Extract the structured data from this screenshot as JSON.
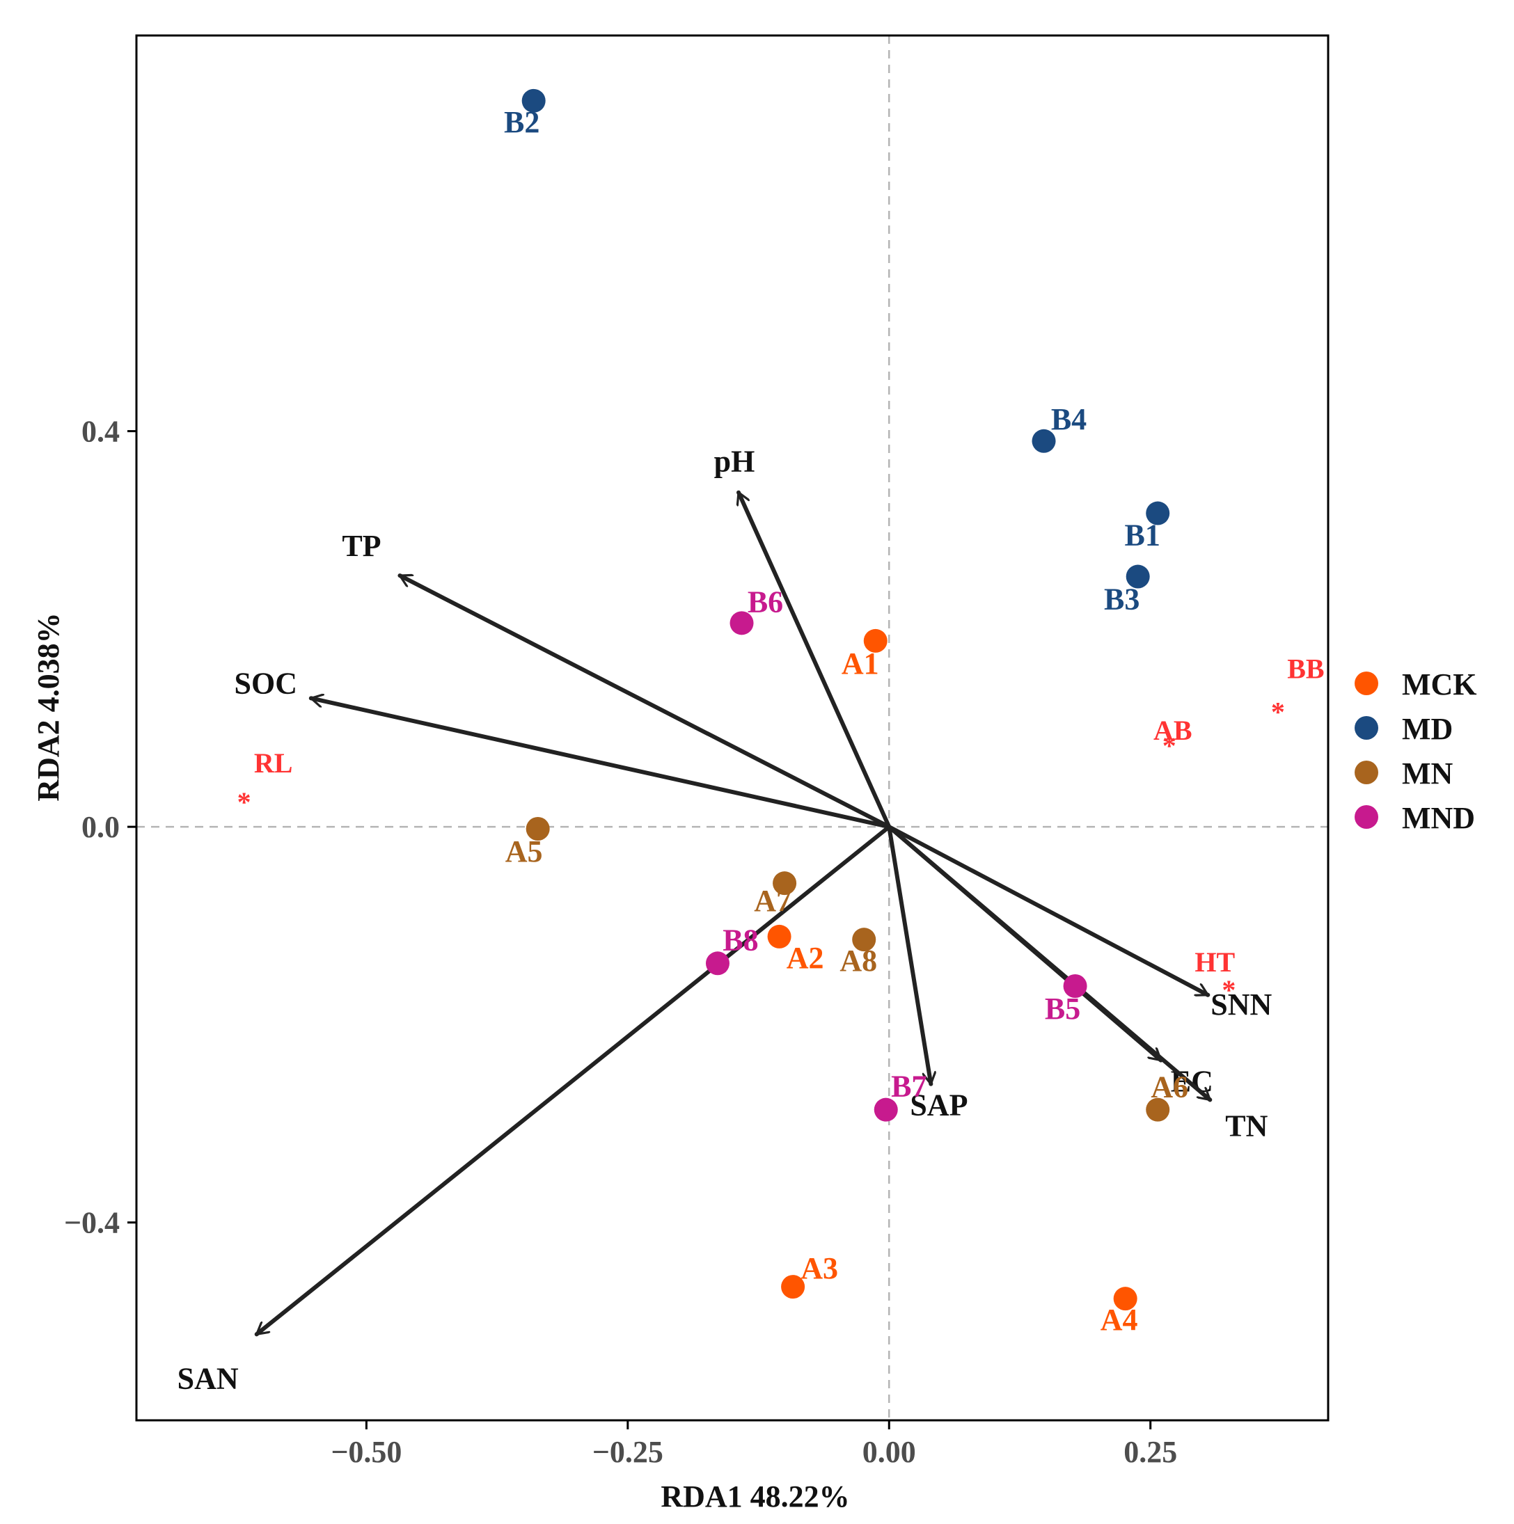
{
  "chart_data": {
    "type": "scatter",
    "title": "",
    "xlabel": "RDA1 48.22%",
    "ylabel": "RDA2 4.038%",
    "xlim": [
      -0.72,
      0.42
    ],
    "ylim": [
      -0.6,
      0.8
    ],
    "x_ticks": [
      -0.5,
      -0.25,
      0.0,
      0.25
    ],
    "x_tick_labels": [
      "−0.50",
      "−0.25",
      "0.00",
      "0.25"
    ],
    "y_ticks": [
      0.4,
      0.0,
      -0.4
    ],
    "y_tick_labels": [
      "0.4",
      "0.0",
      "−0.4"
    ],
    "reference_lines": {
      "x": 0,
      "y": 0,
      "style": "dashed"
    },
    "groups": [
      {
        "name": "MCK",
        "color": "#FF5500"
      },
      {
        "name": "MD",
        "color": "#1B4A80"
      },
      {
        "name": "MN",
        "color": "#A8641E"
      },
      {
        "name": "MND",
        "color": "#C71A8E"
      }
    ],
    "samples": [
      {
        "label": "A1",
        "group": "MCK",
        "x": -0.013,
        "y": 0.188
      },
      {
        "label": "A2",
        "group": "MCK",
        "x": -0.105,
        "y": -0.111
      },
      {
        "label": "A3",
        "group": "MCK",
        "x": -0.092,
        "y": -0.465
      },
      {
        "label": "A4",
        "group": "MCK",
        "x": 0.226,
        "y": -0.477
      },
      {
        "label": "B1",
        "group": "MD",
        "x": 0.257,
        "y": 0.317
      },
      {
        "label": "B2",
        "group": "MD",
        "x": -0.34,
        "y": 0.734
      },
      {
        "label": "B3",
        "group": "MD",
        "x": 0.238,
        "y": 0.253
      },
      {
        "label": "B4",
        "group": "MD",
        "x": 0.148,
        "y": 0.39
      },
      {
        "label": "A5",
        "group": "MN",
        "x": -0.336,
        "y": -0.002
      },
      {
        "label": "A6",
        "group": "MN",
        "x": 0.257,
        "y": -0.286
      },
      {
        "label": "A7",
        "group": "MN",
        "x": -0.1,
        "y": -0.057
      },
      {
        "label": "A8",
        "group": "MN",
        "x": -0.024,
        "y": -0.114
      },
      {
        "label": "B5",
        "group": "MND",
        "x": 0.178,
        "y": -0.161
      },
      {
        "label": "B6",
        "group": "MND",
        "x": -0.141,
        "y": 0.206
      },
      {
        "label": "B7",
        "group": "MND",
        "x": -0.003,
        "y": -0.286
      },
      {
        "label": "B8",
        "group": "MND",
        "x": -0.164,
        "y": -0.138
      }
    ],
    "vectors": [
      {
        "label": "pH",
        "x": -0.144,
        "y": 0.338
      },
      {
        "label": "TP",
        "x": -0.468,
        "y": 0.254
      },
      {
        "label": "SOC",
        "x": -0.553,
        "y": 0.13
      },
      {
        "label": "SAN",
        "x": -0.605,
        "y": -0.513
      },
      {
        "label": "SAP",
        "x": 0.04,
        "y": -0.26
      },
      {
        "label": "SNN",
        "x": 0.305,
        "y": -0.17
      },
      {
        "label": "EC",
        "x": 0.26,
        "y": -0.236
      },
      {
        "label": "TN",
        "x": 0.307,
        "y": -0.276
      }
    ],
    "species": [
      {
        "label": "RL",
        "color": "#FF3333",
        "x": -0.617,
        "y": 0.031
      },
      {
        "label": "AB",
        "color": "#FF3333",
        "x": 0.268,
        "y": 0.088
      },
      {
        "label": "BB",
        "color": "#FF3333",
        "x": 0.372,
        "y": 0.122
      },
      {
        "label": "HT",
        "color": "#FF3333",
        "x": 0.325,
        "y": -0.159
      }
    ],
    "legend": {
      "position": "right",
      "entries": [
        "MCK",
        "MD",
        "MN",
        "MND"
      ]
    }
  }
}
